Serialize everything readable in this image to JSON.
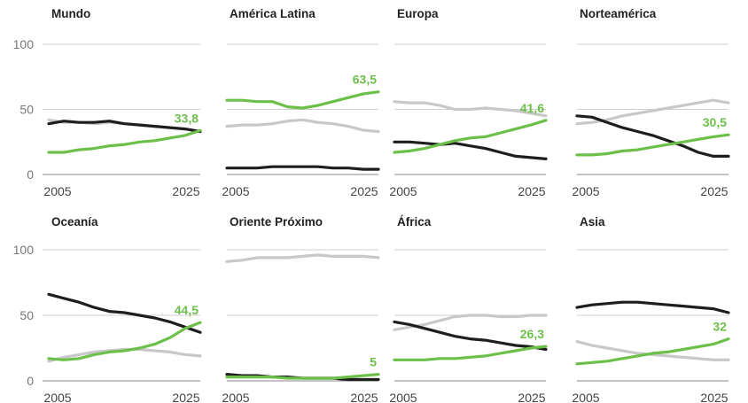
{
  "chart_data": [
    {
      "type": "line",
      "title": "Mundo",
      "x": [
        2005,
        2007,
        2009,
        2011,
        2013,
        2015,
        2017,
        2019,
        2021,
        2023,
        2025
      ],
      "xticks": [
        "2005",
        "2025"
      ],
      "yticks": [
        "100",
        "50",
        "0"
      ],
      "ylim": [
        0,
        100
      ],
      "end_label": "33,8",
      "series": [
        {
          "values": [
            17,
            17,
            19,
            20,
            22,
            23,
            25,
            26,
            28,
            30,
            33.8
          ],
          "color": "#6cc04a"
        },
        {
          "values": [
            42,
            40,
            40,
            39,
            40,
            39,
            38,
            37,
            36,
            35,
            33
          ],
          "color": "#c8c8c8"
        },
        {
          "values": [
            39,
            41,
            40,
            40,
            41,
            39,
            38,
            37,
            36,
            35,
            33
          ],
          "color": "#1e1e1e"
        }
      ]
    },
    {
      "type": "line",
      "title": "América Latina",
      "x": [
        2005,
        2007,
        2009,
        2011,
        2013,
        2015,
        2017,
        2019,
        2021,
        2023,
        2025
      ],
      "xticks": [
        "2005",
        "2025"
      ],
      "yticks": [],
      "ylim": [
        0,
        100
      ],
      "end_label": "63,5",
      "series": [
        {
          "values": [
            57,
            57,
            56,
            56,
            52,
            51,
            53,
            56,
            59,
            62,
            63.5
          ],
          "color": "#6cc04a"
        },
        {
          "values": [
            37,
            38,
            38,
            39,
            41,
            42,
            40,
            39,
            37,
            34,
            33
          ],
          "color": "#c8c8c8"
        },
        {
          "values": [
            5,
            5,
            5,
            6,
            6,
            6,
            6,
            5,
            5,
            4,
            4
          ],
          "color": "#1e1e1e"
        }
      ]
    },
    {
      "type": "line",
      "title": "Europa",
      "x": [
        2005,
        2007,
        2009,
        2011,
        2013,
        2015,
        2017,
        2019,
        2021,
        2023,
        2025
      ],
      "xticks": [
        "2005",
        "2025"
      ],
      "yticks": [],
      "ylim": [
        0,
        100
      ],
      "end_label": "41,6",
      "series": [
        {
          "values": [
            17,
            18,
            20,
            23,
            26,
            28,
            29,
            32,
            35,
            38,
            41.6
          ],
          "color": "#6cc04a"
        },
        {
          "values": [
            56,
            55,
            55,
            53,
            50,
            50,
            51,
            50,
            49,
            47,
            45
          ],
          "color": "#c8c8c8"
        },
        {
          "values": [
            25,
            25,
            24,
            23,
            24,
            22,
            20,
            17,
            14,
            13,
            12
          ],
          "color": "#1e1e1e"
        }
      ]
    },
    {
      "type": "line",
      "title": "Norteamérica",
      "x": [
        2005,
        2007,
        2009,
        2011,
        2013,
        2015,
        2017,
        2019,
        2021,
        2023,
        2025
      ],
      "xticks": [
        "2005",
        "2025"
      ],
      "yticks": [],
      "ylim": [
        0,
        100
      ],
      "end_label": "30,5",
      "series": [
        {
          "values": [
            15,
            15,
            16,
            18,
            19,
            21,
            23,
            25,
            27,
            29,
            30.5
          ],
          "color": "#6cc04a"
        },
        {
          "values": [
            39,
            40,
            42,
            45,
            47,
            49,
            51,
            53,
            55,
            57,
            55
          ],
          "color": "#c8c8c8"
        },
        {
          "values": [
            45,
            44,
            40,
            36,
            33,
            30,
            26,
            22,
            17,
            14,
            14
          ],
          "color": "#1e1e1e"
        }
      ]
    },
    {
      "type": "line",
      "title": "Oceanía",
      "x": [
        2005,
        2007,
        2009,
        2011,
        2013,
        2015,
        2017,
        2019,
        2021,
        2023,
        2025
      ],
      "xticks": [
        "2005",
        "2025"
      ],
      "yticks": [
        "100",
        "50",
        "0"
      ],
      "ylim": [
        0,
        100
      ],
      "end_label": "44,5",
      "series": [
        {
          "values": [
            17,
            16,
            17,
            20,
            22,
            23,
            25,
            28,
            33,
            40,
            44.5
          ],
          "color": "#6cc04a"
        },
        {
          "values": [
            15,
            18,
            20,
            22,
            23,
            24,
            24,
            23,
            22,
            20,
            19
          ],
          "color": "#c8c8c8"
        },
        {
          "values": [
            66,
            63,
            60,
            56,
            53,
            52,
            50,
            48,
            45,
            41,
            37
          ],
          "color": "#1e1e1e"
        }
      ]
    },
    {
      "type": "line",
      "title": "Oriente Próximo",
      "x": [
        2005,
        2007,
        2009,
        2011,
        2013,
        2015,
        2017,
        2019,
        2021,
        2023,
        2025
      ],
      "xticks": [
        "2005",
        "2025"
      ],
      "yticks": [],
      "ylim": [
        0,
        100
      ],
      "end_label": "5",
      "series": [
        {
          "values": [
            3,
            3,
            3,
            3,
            2,
            2,
            2,
            2,
            3,
            4,
            5
          ],
          "color": "#6cc04a"
        },
        {
          "values": [
            91,
            92,
            94,
            94,
            94,
            95,
            96,
            95,
            95,
            95,
            94
          ],
          "color": "#c8c8c8"
        },
        {
          "values": [
            5,
            4,
            4,
            3,
            3,
            2,
            2,
            2,
            1,
            1,
            1
          ],
          "color": "#1e1e1e"
        }
      ]
    },
    {
      "type": "line",
      "title": "África",
      "x": [
        2005,
        2007,
        2009,
        2011,
        2013,
        2015,
        2017,
        2019,
        2021,
        2023,
        2025
      ],
      "xticks": [
        "2005",
        "2025"
      ],
      "yticks": [],
      "ylim": [
        0,
        100
      ],
      "end_label": "26,3",
      "series": [
        {
          "values": [
            16,
            16,
            16,
            17,
            17,
            18,
            19,
            21,
            23,
            25,
            26.3
          ],
          "color": "#6cc04a"
        },
        {
          "values": [
            39,
            41,
            43,
            46,
            49,
            50,
            50,
            49,
            49,
            50,
            50
          ],
          "color": "#c8c8c8"
        },
        {
          "values": [
            45,
            43,
            40,
            37,
            34,
            32,
            31,
            29,
            27,
            26,
            24
          ],
          "color": "#1e1e1e"
        }
      ]
    },
    {
      "type": "line",
      "title": "Asia",
      "x": [
        2005,
        2007,
        2009,
        2011,
        2013,
        2015,
        2017,
        2019,
        2021,
        2023,
        2025
      ],
      "xticks": [
        "2005",
        "2025"
      ],
      "yticks": [],
      "ylim": [
        0,
        100
      ],
      "end_label": "32",
      "series": [
        {
          "values": [
            13,
            14,
            15,
            17,
            19,
            21,
            22,
            24,
            26,
            28,
            32
          ],
          "color": "#6cc04a"
        },
        {
          "values": [
            30,
            27,
            25,
            23,
            21,
            20,
            19,
            18,
            17,
            16,
            16
          ],
          "color": "#c8c8c8"
        },
        {
          "values": [
            56,
            58,
            59,
            60,
            60,
            59,
            58,
            57,
            56,
            55,
            52
          ],
          "color": "#1e1e1e"
        }
      ]
    }
  ],
  "colors": {
    "accent": "#6cc04a",
    "end_label": "#6cc04a",
    "grid": "#cfcfcf",
    "text": "#222222"
  }
}
